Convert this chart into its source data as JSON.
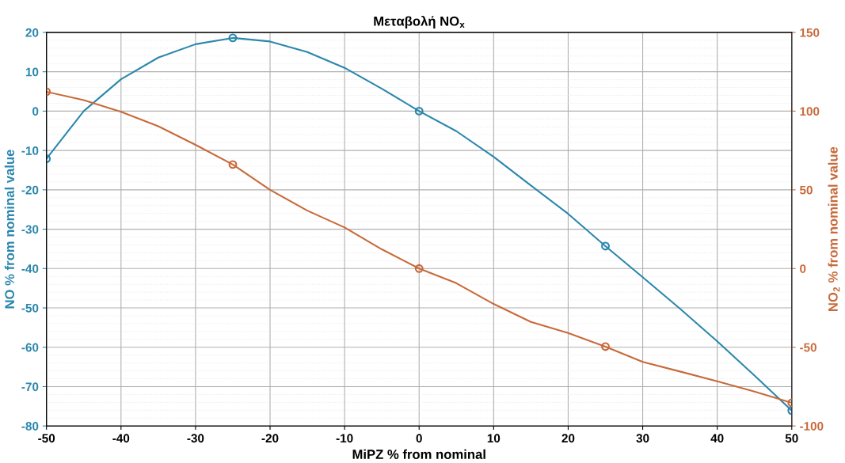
{
  "chart_data": {
    "type": "line",
    "title": "Μεταβολή NO$_{x}$",
    "xlabel": "MiPZ % from nominal",
    "ylabel": "NO % from nominal value",
    "y2label": "NO$_{2}$ % from nominal value",
    "xlim": [
      -50,
      50
    ],
    "xticks": [
      -50,
      -40,
      -30,
      -20,
      -10,
      0,
      10,
      20,
      30,
      40,
      50
    ],
    "ylim": [
      -80,
      20
    ],
    "yticks": [
      -80,
      -70,
      -60,
      -50,
      -40,
      -30,
      -20,
      -10,
      0,
      10,
      20
    ],
    "y2lim": [
      -100,
      150
    ],
    "y2ticks": [
      -100,
      -50,
      0,
      50,
      100,
      150
    ],
    "grid": true,
    "legend": false,
    "series": [
      {
        "color": "#2b87ad",
        "marker": "none",
        "x": [
          -50,
          -45,
          -40,
          -35,
          -30,
          -25,
          -20,
          -15,
          -10,
          -5,
          0,
          5,
          10,
          15,
          20,
          25,
          30,
          35,
          40,
          45,
          50
        ],
        "values": [
          -12.1,
          0,
          8.1,
          13.6,
          17,
          18.6,
          17.7,
          15,
          11,
          5.7,
          0,
          -5.1,
          -11.6,
          -18.9,
          -26.1,
          -34.3,
          -42.2,
          -50.2,
          -58.5,
          -67.2,
          -76.1
        ]
      },
      {
        "type": "scatter",
        "color": "#2b87ad",
        "marker": "circle",
        "x": [
          -50,
          -25,
          0,
          25,
          50
        ],
        "values": [
          -12.1,
          18.6,
          0,
          -34.3,
          -76.1
        ]
      },
      {
        "axis": "y2",
        "color": "#c86a3b",
        "marker": "none",
        "x": [
          -50,
          -45,
          -40,
          -35,
          -30,
          -25,
          -20,
          -15,
          -10,
          -5,
          0,
          5,
          10,
          15,
          20,
          25,
          30,
          35,
          40,
          45,
          50
        ],
        "values": [
          112.3,
          107,
          99.6,
          90.4,
          78.6,
          66.1,
          50,
          36.8,
          26.1,
          12.2,
          0,
          -9.3,
          -22.5,
          -33.9,
          -40.9,
          -49.6,
          -59.3,
          -65.4,
          -71.6,
          -78.2,
          -85.3
        ]
      },
      {
        "type": "scatter",
        "axis": "y2",
        "color": "#c86a3b",
        "marker": "circle",
        "x": [
          -50,
          -25,
          0,
          25,
          50
        ],
        "values": [
          112.3,
          66.1,
          0,
          -49.6,
          -85.3
        ]
      }
    ]
  }
}
